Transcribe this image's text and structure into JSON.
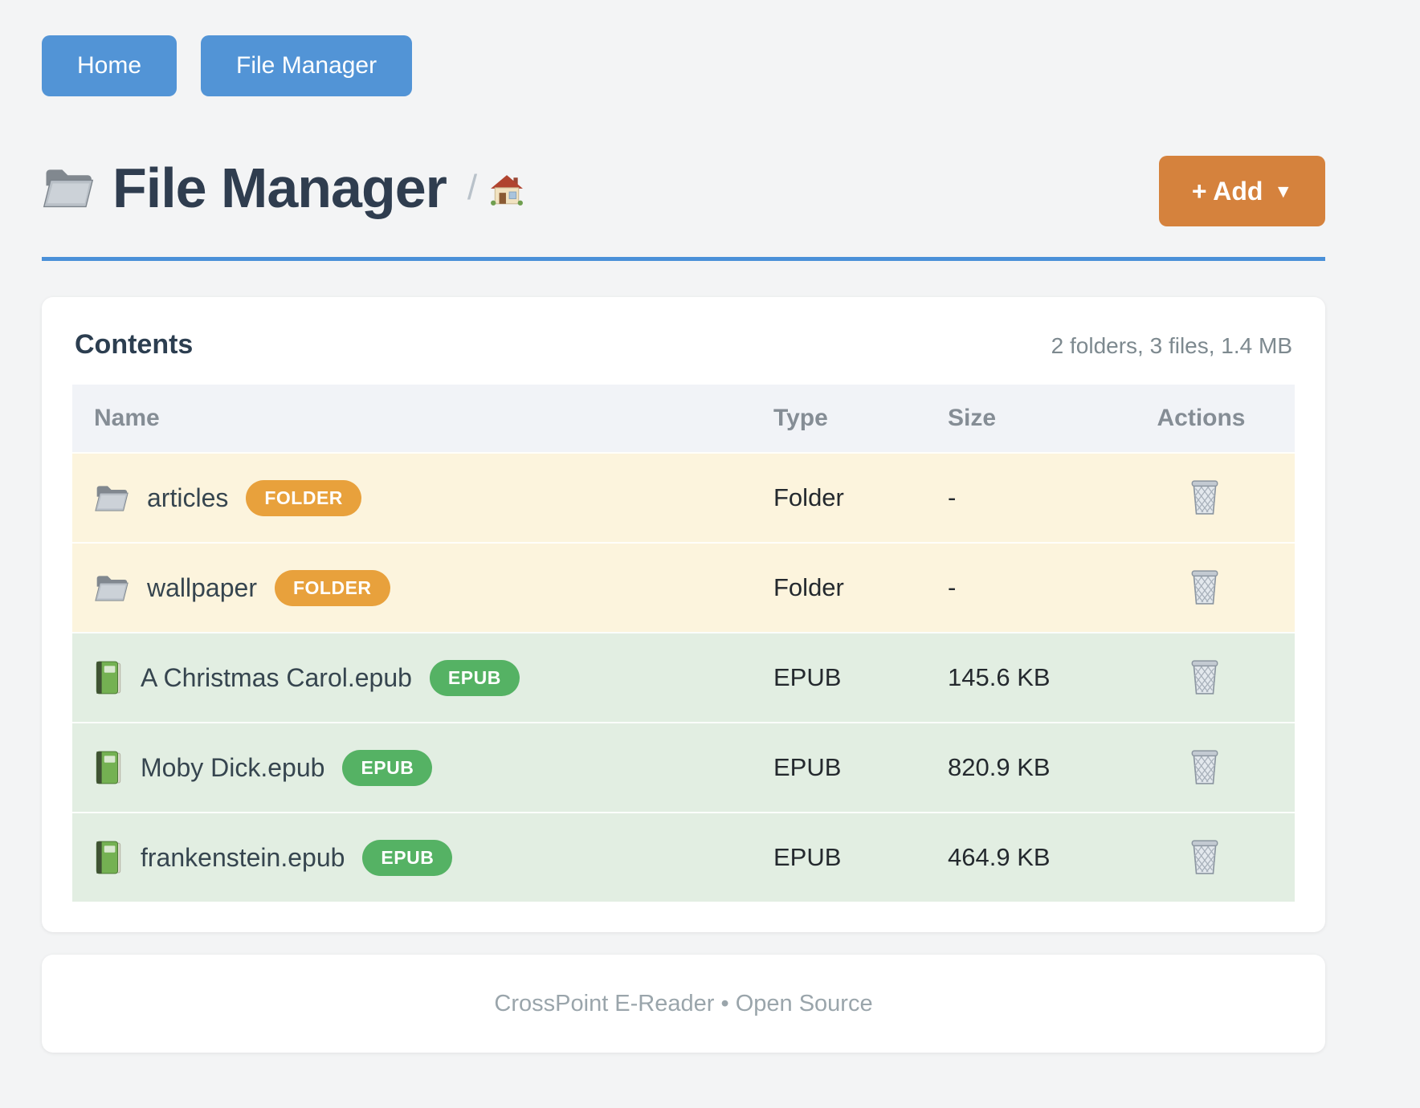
{
  "nav": {
    "buttons": [
      {
        "label": "Home"
      },
      {
        "label": "File Manager"
      }
    ]
  },
  "header": {
    "title": "File Manager",
    "title_icon": "folder-icon",
    "breadcrumb_separator": "/",
    "breadcrumb_home_icon": "house-icon",
    "add_button": {
      "label": "+ Add",
      "caret": "▼"
    }
  },
  "contents": {
    "heading": "Contents",
    "summary": "2 folders, 3 files, 1.4 MB",
    "table": {
      "columns": [
        "Name",
        "Type",
        "Size",
        "Actions"
      ],
      "delete_icon": "trash-icon",
      "rows": [
        {
          "name": "articles",
          "icon": "folder-icon",
          "badge": "FOLDER",
          "type": "Folder",
          "size": "-",
          "kind": "folder"
        },
        {
          "name": "wallpaper",
          "icon": "folder-icon",
          "badge": "FOLDER",
          "type": "Folder",
          "size": "-",
          "kind": "folder"
        },
        {
          "name": "A Christmas Carol.epub",
          "icon": "book-icon",
          "badge": "EPUB",
          "type": "EPUB",
          "size": "145.6 KB",
          "kind": "file"
        },
        {
          "name": "Moby Dick.epub",
          "icon": "book-icon",
          "badge": "EPUB",
          "type": "EPUB",
          "size": "820.9 KB",
          "kind": "file"
        },
        {
          "name": "frankenstein.epub",
          "icon": "book-icon",
          "badge": "EPUB",
          "type": "EPUB",
          "size": "464.9 KB",
          "kind": "file"
        }
      ]
    }
  },
  "footer": {
    "text": "CrossPoint E-Reader • Open Source"
  },
  "colors": {
    "page_background": "#f3f4f5",
    "nav_button": "#5294d6",
    "header_rule": "#4a90d8",
    "add_button": "#d5823d",
    "folder_badge": "#e8a13c",
    "epub_badge": "#55b264",
    "folder_row_background": "#fcf4dd",
    "file_row_background": "#e2eee2",
    "table_header_background": "#f1f3f7"
  }
}
